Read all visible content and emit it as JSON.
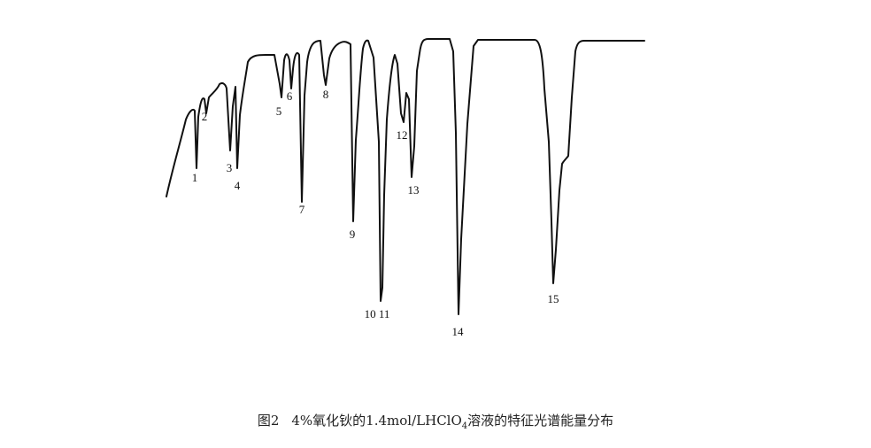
{
  "caption": {
    "figure_label": "图2",
    "text_before": "4%氧化钬的1.4mol/LHClO",
    "subscript": "4",
    "text_after": "溶液的特征光谱能量分布"
  },
  "chart_data": {
    "type": "line",
    "title": "",
    "xlabel": "",
    "ylabel": "",
    "colors": {
      "trace": "#111111"
    },
    "peak_labels": [
      "1",
      "2",
      "3",
      "4",
      "5",
      "6",
      "7",
      "8",
      "9",
      "10 11",
      "12",
      "13",
      "14",
      "15"
    ]
  }
}
